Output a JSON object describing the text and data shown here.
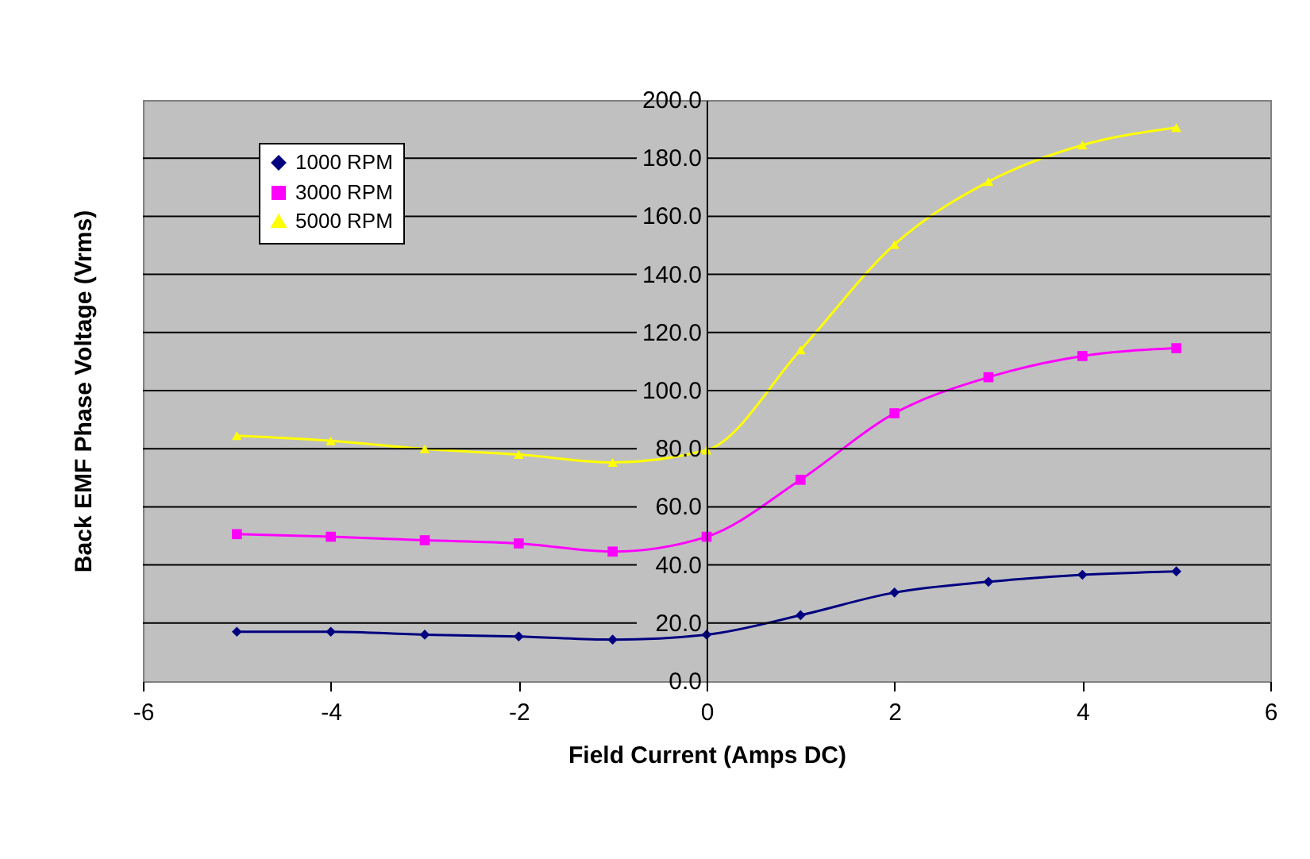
{
  "chart_data": {
    "type": "line",
    "xlabel": "Field Current (Amps DC)",
    "ylabel": "Back EMF Phase Voltage (Vrms)",
    "x": [
      -5,
      -4,
      -3,
      -2,
      -1,
      0,
      1,
      2,
      3,
      4,
      5
    ],
    "series": [
      {
        "name": "1000 RPM",
        "color": "#000080",
        "marker": "diamond",
        "values": [
          17.0,
          17.0,
          16.0,
          15.4,
          14.3,
          16.0,
          22.7,
          30.5,
          34.2,
          36.6,
          37.8
        ]
      },
      {
        "name": "3000 RPM",
        "color": "#ff00ff",
        "marker": "square",
        "values": [
          50.6,
          49.7,
          48.5,
          47.4,
          44.6,
          49.7,
          69.3,
          92.2,
          104.6,
          111.9,
          114.6
        ]
      },
      {
        "name": "5000 RPM",
        "color": "#ffff00",
        "marker": "triangle",
        "values": [
          84.5,
          82.7,
          79.9,
          78.0,
          75.3,
          79.5,
          114.0,
          150.3,
          171.9,
          184.5,
          190.5
        ]
      }
    ],
    "xlim": [
      -6,
      6
    ],
    "xticks": [
      -6,
      -4,
      -2,
      0,
      2,
      4,
      6
    ],
    "ylim": [
      0,
      200
    ],
    "yticks": [
      {
        "value": 0,
        "label": "0.0"
      },
      {
        "value": 20,
        "label": "20.0"
      },
      {
        "value": 40,
        "label": "40.0"
      },
      {
        "value": 60,
        "label": "60.0"
      },
      {
        "value": 80,
        "label": "80.0"
      },
      {
        "value": 100,
        "label": "100.0"
      },
      {
        "value": 120,
        "label": "120.0"
      },
      {
        "value": 140,
        "label": "140.0"
      },
      {
        "value": 160,
        "label": "160.0"
      },
      {
        "value": 180,
        "label": "180.0"
      },
      {
        "value": 200,
        "label": "200.0"
      }
    ],
    "grid": "y",
    "legend": "top left",
    "line_style": "solid"
  }
}
